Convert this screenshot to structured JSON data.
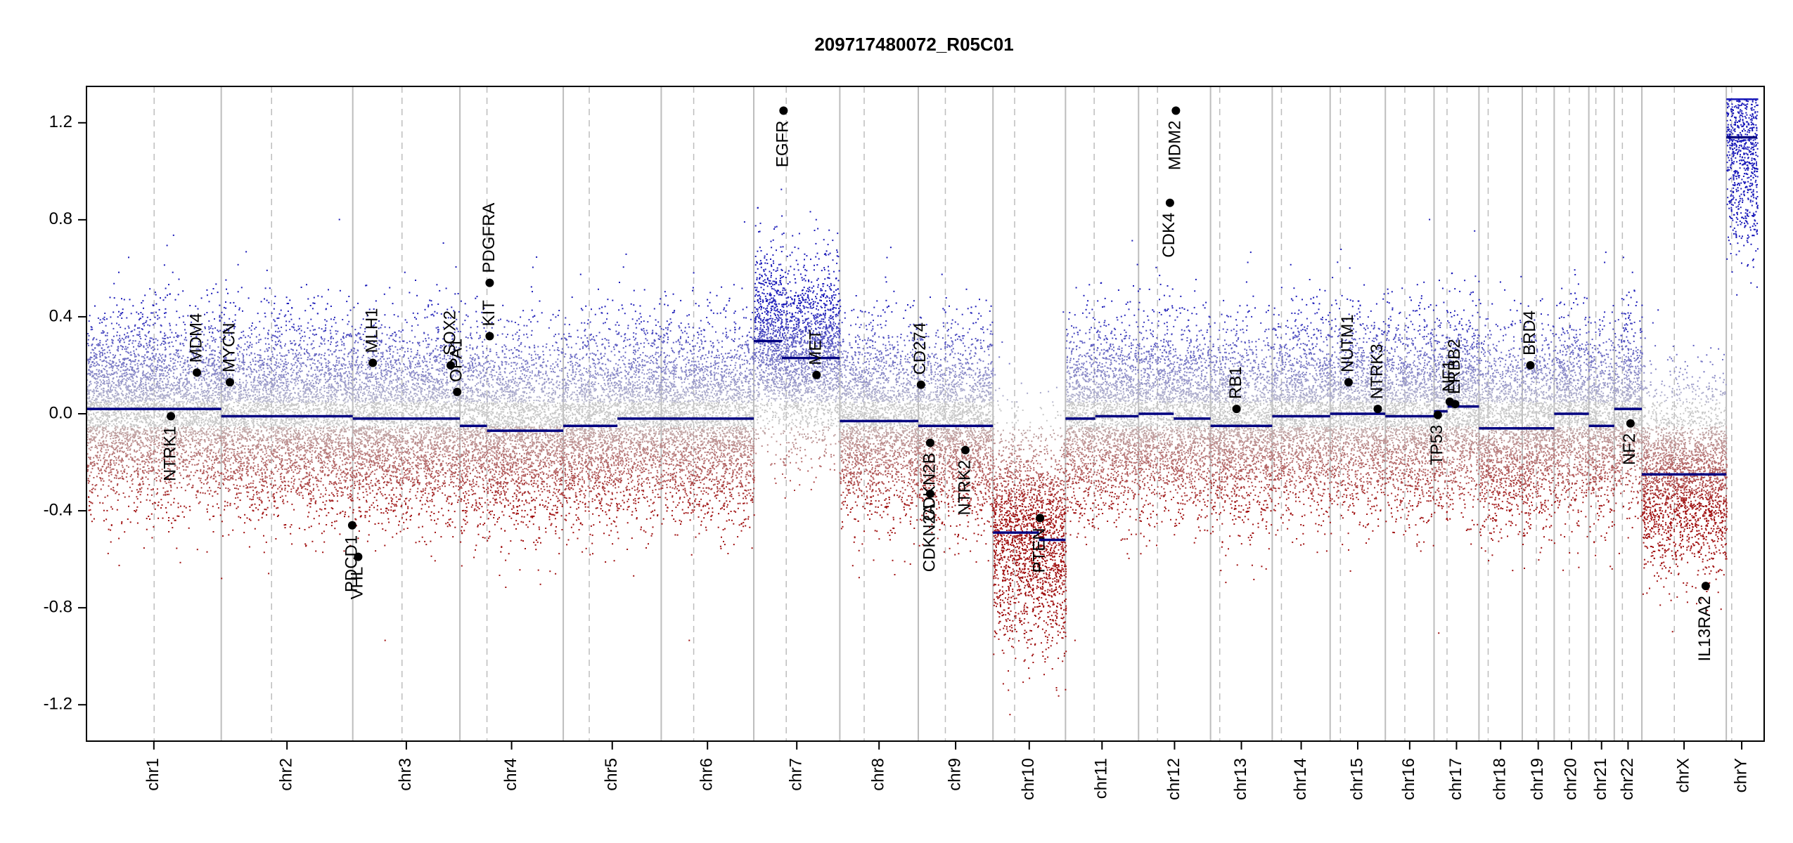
{
  "chart_data": {
    "type": "scatter",
    "title": "209717480072_R05C01",
    "xlabel": "",
    "ylabel": "",
    "ylim": [
      -1.35,
      1.35
    ],
    "y_ticks": [
      1.2,
      0.8,
      0.4,
      0.0,
      -0.4,
      -0.8,
      -1.2
    ],
    "y_tick_labels": [
      "1.2",
      "0.8",
      "0.4",
      "0.0",
      "-0.4",
      "-0.8",
      "-1.2"
    ],
    "genome_length_mb": 3100,
    "chromosomes": [
      {
        "name": "chr1",
        "length": 249,
        "centromere": 125
      },
      {
        "name": "chr2",
        "length": 243,
        "centromere": 93
      },
      {
        "name": "chr3",
        "length": 198,
        "centromere": 91
      },
      {
        "name": "chr4",
        "length": 191,
        "centromere": 50
      },
      {
        "name": "chr5",
        "length": 181,
        "centromere": 48
      },
      {
        "name": "chr6",
        "length": 171,
        "centromere": 60
      },
      {
        "name": "chr7",
        "length": 159,
        "centromere": 60
      },
      {
        "name": "chr8",
        "length": 145,
        "centromere": 45
      },
      {
        "name": "chr9",
        "length": 138,
        "centromere": 50
      },
      {
        "name": "chr10",
        "length": 134,
        "centromere": 40
      },
      {
        "name": "chr11",
        "length": 135,
        "centromere": 53
      },
      {
        "name": "chr12",
        "length": 133,
        "centromere": 35
      },
      {
        "name": "chr13",
        "length": 114,
        "centromere": 17
      },
      {
        "name": "chr14",
        "length": 107,
        "centromere": 17
      },
      {
        "name": "chr15",
        "length": 102,
        "centromere": 19
      },
      {
        "name": "chr16",
        "length": 90,
        "centromere": 36
      },
      {
        "name": "chr17",
        "length": 83,
        "centromere": 24
      },
      {
        "name": "chr18",
        "length": 80,
        "centromere": 17
      },
      {
        "name": "chr19",
        "length": 59,
        "centromere": 26
      },
      {
        "name": "chr20",
        "length": 64,
        "centromere": 28
      },
      {
        "name": "chr21",
        "length": 47,
        "centromere": 13
      },
      {
        "name": "chr22",
        "length": 51,
        "centromere": 15
      },
      {
        "name": "chrX",
        "length": 156,
        "centromere": 60
      },
      {
        "name": "chrY",
        "length": 57,
        "centromere": 10
      }
    ],
    "segments": [
      {
        "chr": "chr1",
        "start": 0,
        "end": 249,
        "value": 0.02
      },
      {
        "chr": "chr2",
        "start": 0,
        "end": 243,
        "value": -0.01
      },
      {
        "chr": "chr3",
        "start": 0,
        "end": 198,
        "value": -0.02
      },
      {
        "chr": "chr4",
        "start": 0,
        "end": 50,
        "value": -0.05
      },
      {
        "chr": "chr4",
        "start": 50,
        "end": 191,
        "value": -0.07
      },
      {
        "chr": "chr5",
        "start": 0,
        "end": 100,
        "value": -0.05
      },
      {
        "chr": "chr5",
        "start": 100,
        "end": 181,
        "value": -0.02
      },
      {
        "chr": "chr6",
        "start": 0,
        "end": 171,
        "value": -0.02
      },
      {
        "chr": "chr7",
        "start": 0,
        "end": 52,
        "value": 0.3
      },
      {
        "chr": "chr7",
        "start": 52,
        "end": 159,
        "value": 0.23
      },
      {
        "chr": "chr8",
        "start": 0,
        "end": 145,
        "value": -0.03
      },
      {
        "chr": "chr9",
        "start": 0,
        "end": 138,
        "value": -0.05
      },
      {
        "chr": "chr10",
        "start": 0,
        "end": 85,
        "value": -0.49
      },
      {
        "chr": "chr10",
        "start": 85,
        "end": 134,
        "value": -0.52
      },
      {
        "chr": "chr11",
        "start": 0,
        "end": 55,
        "value": -0.02
      },
      {
        "chr": "chr11",
        "start": 55,
        "end": 135,
        "value": -0.01
      },
      {
        "chr": "chr12",
        "start": 0,
        "end": 65,
        "value": 0.0
      },
      {
        "chr": "chr12",
        "start": 65,
        "end": 133,
        "value": -0.02
      },
      {
        "chr": "chr13",
        "start": 0,
        "end": 114,
        "value": -0.05
      },
      {
        "chr": "chr14",
        "start": 0,
        "end": 107,
        "value": -0.01
      },
      {
        "chr": "chr15",
        "start": 0,
        "end": 102,
        "value": 0.0
      },
      {
        "chr": "chr16",
        "start": 0,
        "end": 90,
        "value": -0.01
      },
      {
        "chr": "chr17",
        "start": 0,
        "end": 25,
        "value": 0.01
      },
      {
        "chr": "chr17",
        "start": 25,
        "end": 83,
        "value": 0.03
      },
      {
        "chr": "chr18",
        "start": 0,
        "end": 80,
        "value": -0.06
      },
      {
        "chr": "chr19",
        "start": 0,
        "end": 59,
        "value": -0.06
      },
      {
        "chr": "chr20",
        "start": 0,
        "end": 64,
        "value": 0.0
      },
      {
        "chr": "chr21",
        "start": 0,
        "end": 47,
        "value": -0.05
      },
      {
        "chr": "chr22",
        "start": 0,
        "end": 51,
        "value": 0.02
      },
      {
        "chr": "chrX",
        "start": 0,
        "end": 156,
        "value": -0.25
      },
      {
        "chr": "chrY",
        "start": 0,
        "end": 57,
        "value": 1.14
      }
    ],
    "genes": [
      {
        "name": "NTRK1",
        "chr": "chr1",
        "pos": 156,
        "value": -0.01,
        "label_side": "below"
      },
      {
        "name": "MDM4",
        "chr": "chr1",
        "pos": 204,
        "value": 0.17,
        "label_side": "above"
      },
      {
        "name": "MYCN",
        "chr": "chr2",
        "pos": 16,
        "value": 0.13,
        "label_side": "above"
      },
      {
        "name": "PDCD1",
        "chr": "chr2",
        "pos": 242,
        "value": -0.46,
        "label_side": "below"
      },
      {
        "name": "VHL",
        "chr": "chr3",
        "pos": 10,
        "value": -0.59,
        "label_side": "below"
      },
      {
        "name": "MLH1",
        "chr": "chr3",
        "pos": 37,
        "value": 0.21,
        "label_side": "above"
      },
      {
        "name": "SOX2",
        "chr": "chr3",
        "pos": 181,
        "value": 0.2,
        "label_side": "above"
      },
      {
        "name": "OPA1",
        "chr": "chr3",
        "pos": 193,
        "value": 0.09,
        "label_side": "above"
      },
      {
        "name": "KIT",
        "chr": "chr4",
        "pos": 55,
        "value": 0.32,
        "label_side": "above"
      },
      {
        "name": "PDGFRA",
        "chr": "chr4",
        "pos": 55,
        "value": 0.54,
        "label_side": "above"
      },
      {
        "name": "EGFR",
        "chr": "chr7",
        "pos": 55,
        "value": 1.25,
        "label_side": "below"
      },
      {
        "name": "MET",
        "chr": "chr7",
        "pos": 116,
        "value": 0.16,
        "label_side": "above"
      },
      {
        "name": "CD274",
        "chr": "chr9",
        "pos": 5,
        "value": 0.12,
        "label_side": "above"
      },
      {
        "name": "CDKN2A",
        "chr": "chr9",
        "pos": 22,
        "value": -0.33,
        "label_side": "below"
      },
      {
        "name": "CDKN2B",
        "chr": "chr9",
        "pos": 22,
        "value": -0.12,
        "label_side": "below"
      },
      {
        "name": "NTRK2",
        "chr": "chr9",
        "pos": 87,
        "value": -0.15,
        "label_side": "below"
      },
      {
        "name": "PTEN",
        "chr": "chr10",
        "pos": 87,
        "value": -0.43,
        "label_side": "below"
      },
      {
        "name": "CDK4",
        "chr": "chr12",
        "pos": 58,
        "value": 0.87,
        "label_side": "below"
      },
      {
        "name": "MDM2",
        "chr": "chr12",
        "pos": 69,
        "value": 1.25,
        "label_side": "below"
      },
      {
        "name": "RB1",
        "chr": "chr13",
        "pos": 48,
        "value": 0.02,
        "label_side": "above"
      },
      {
        "name": "NUTM1",
        "chr": "chr15",
        "pos": 34,
        "value": 0.13,
        "label_side": "above"
      },
      {
        "name": "NTRK3",
        "chr": "chr15",
        "pos": 88,
        "value": 0.02,
        "label_side": "above"
      },
      {
        "name": "TP53",
        "chr": "chr17",
        "pos": 7,
        "value": -0.005,
        "label_side": "below"
      },
      {
        "name": "NF1",
        "chr": "chr17",
        "pos": 29,
        "value": 0.05,
        "label_side": "above"
      },
      {
        "name": "ERBB2",
        "chr": "chr17",
        "pos": 39,
        "value": 0.04,
        "label_side": "above"
      },
      {
        "name": "BRD4",
        "chr": "chr19",
        "pos": 15,
        "value": 0.2,
        "label_side": "above"
      },
      {
        "name": "NF2",
        "chr": "chr22",
        "pos": 30,
        "value": -0.04,
        "label_side": "below"
      },
      {
        "name": "IL13RA2",
        "chr": "chrX",
        "pos": 118,
        "value": -0.71,
        "label_side": "below"
      }
    ],
    "colors": {
      "gain": "#1a1aa8",
      "loss": "#a01010",
      "neutral": "#b9b9b9",
      "segment": "#000080",
      "gene": "#000000"
    }
  }
}
